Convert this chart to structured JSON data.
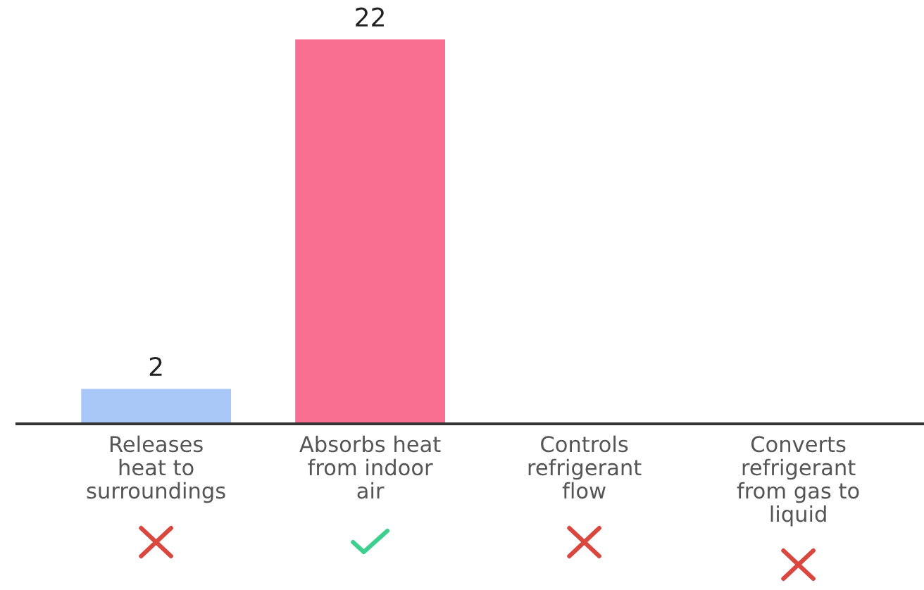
{
  "chart_data": {
    "type": "bar",
    "categories": [
      "Releases\nheat to\nsurroundings",
      "Absorbs heat\nfrom indoor\nair",
      "Controls\nrefrigerant\nflow",
      "Converts\nrefrigerant\nfrom gas to\nliquid"
    ],
    "values": [
      2,
      22,
      0,
      0
    ],
    "colors": [
      "#a9c8f7",
      "#f86f92",
      "#a9c8f7",
      "#a9c8f7"
    ],
    "value_labels": [
      "2",
      "22",
      null,
      null
    ],
    "grid": false,
    "legend": false
  }
}
